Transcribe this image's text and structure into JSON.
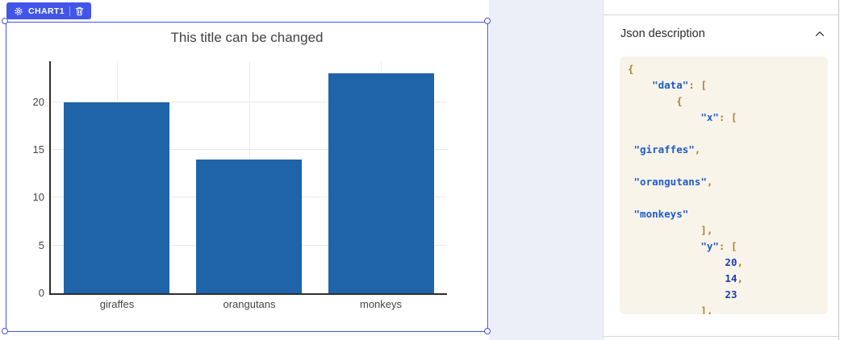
{
  "badge": {
    "label": "CHART1"
  },
  "panel": {
    "title": "Json description",
    "code_lines": [
      [
        {
          "t": "{",
          "c": "p"
        }
      ],
      [
        {
          "t": "    ",
          "c": "w"
        },
        {
          "t": "\"data\"",
          "c": "k"
        },
        {
          "t": ": [",
          "c": "p"
        }
      ],
      [
        {
          "t": "        {",
          "c": "p"
        }
      ],
      [
        {
          "t": "            ",
          "c": "w"
        },
        {
          "t": "\"x\"",
          "c": "k"
        },
        {
          "t": ": [",
          "c": "p"
        }
      ],
      [],
      [
        {
          "t": " ",
          "c": "w"
        },
        {
          "t": "\"giraffes\"",
          "c": "k"
        },
        {
          "t": ",",
          "c": "p"
        }
      ],
      [],
      [
        {
          "t": " ",
          "c": "w"
        },
        {
          "t": "\"orangutans\"",
          "c": "k"
        },
        {
          "t": ",",
          "c": "p"
        }
      ],
      [],
      [
        {
          "t": " ",
          "c": "w"
        },
        {
          "t": "\"monkeys\"",
          "c": "k"
        }
      ],
      [
        {
          "t": "            ],",
          "c": "p"
        }
      ],
      [
        {
          "t": "            ",
          "c": "w"
        },
        {
          "t": "\"y\"",
          "c": "k"
        },
        {
          "t": ": [",
          "c": "p"
        }
      ],
      [
        {
          "t": "                ",
          "c": "w"
        },
        {
          "t": "20",
          "c": "n"
        },
        {
          "t": ",",
          "c": "p"
        }
      ],
      [
        {
          "t": "                ",
          "c": "w"
        },
        {
          "t": "14",
          "c": "n"
        },
        {
          "t": ",",
          "c": "p"
        }
      ],
      [
        {
          "t": "                ",
          "c": "w"
        },
        {
          "t": "23",
          "c": "n"
        }
      ],
      [
        {
          "t": "            ],",
          "c": "p"
        }
      ]
    ]
  },
  "chart_data": {
    "type": "bar",
    "title": "This title can be changed",
    "categories": [
      "giraffes",
      "orangutans",
      "monkeys"
    ],
    "values": [
      20,
      14,
      23
    ],
    "yticks": [
      0,
      5,
      10,
      15,
      20
    ],
    "ylim": [
      0,
      24.3
    ],
    "xlabel": "",
    "ylabel": "",
    "grid": true,
    "bar_color": "#1f63a9"
  },
  "colors": {
    "accent": "#4355e8",
    "bar": "#1f63a9",
    "code_background": "#f9f4ea",
    "json_key": "#1f5cc9",
    "json_punctuation": "#a8842d",
    "json_number": "#1a3ead"
  }
}
